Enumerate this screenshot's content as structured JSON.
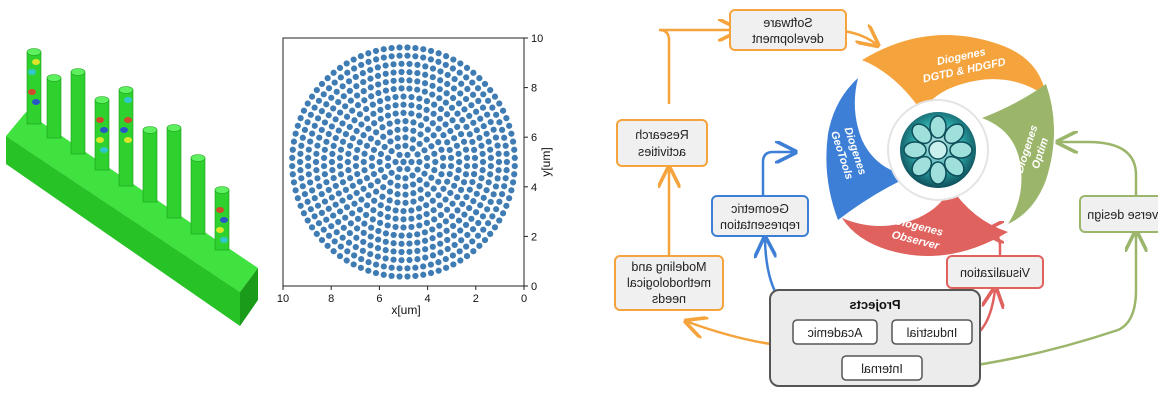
{
  "flow": {
    "boxes": {
      "software": [
        "Software",
        "development"
      ],
      "research": [
        "Research",
        "activities"
      ],
      "geometric": [
        "Geometric",
        "representation"
      ],
      "modeling": [
        "Modeling and",
        "methodological",
        "needs"
      ],
      "visualization": [
        "Visualization"
      ],
      "inverse": [
        "Inverse design"
      ]
    },
    "projects": {
      "title": "Projects",
      "items": [
        "Industrial",
        "Academic",
        "Internal"
      ]
    }
  },
  "petals": {
    "dgtd": [
      "Diogenes",
      "DGTD & HDGFD"
    ],
    "optim": [
      "Diogenes",
      "Optim"
    ],
    "observer": [
      "Diogenes",
      "Observer"
    ],
    "geo": [
      "Diogenes",
      "GeoTools"
    ]
  },
  "colors": {
    "orange": "#f5a33c",
    "blue": "#3d7fd6",
    "red": "#e0625e",
    "green": "#9bb56a",
    "gray": "#555555",
    "box_fill": "#f0f0f0",
    "dot": "#3f7cb3",
    "device_green": "#2fd12f"
  },
  "scatter": {
    "type": "scatter",
    "xlabel": "x[um]",
    "ylabel": "y[um]",
    "xlim": [
      0,
      10
    ],
    "ylim": [
      0,
      10
    ],
    "xticks": [
      "0",
      "2",
      "4",
      "6",
      "8",
      "10"
    ],
    "yticks": [
      "0",
      "2",
      "4",
      "6",
      "8",
      "10"
    ],
    "pattern": "circular array of circles, center (5,5), radius ~5"
  },
  "render_3d": {
    "description": "3D field render of nanopillar array (left)"
  }
}
